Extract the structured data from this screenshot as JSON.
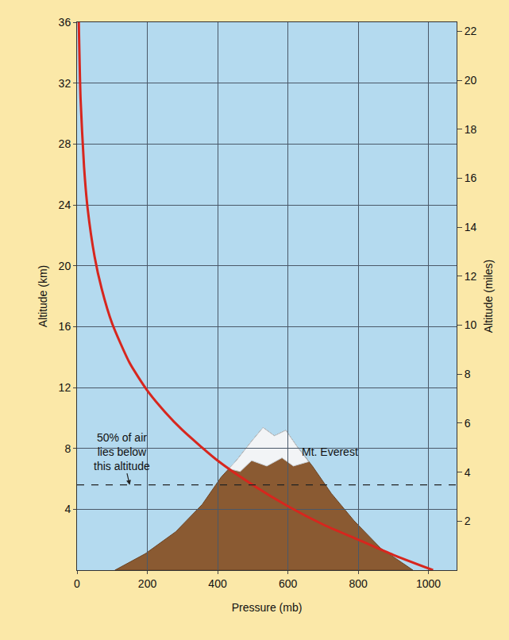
{
  "chart_data": {
    "type": "line",
    "x_label": "Pressure (mb)",
    "y_label": "Altitude (km)",
    "y2_label": "Altitude (miles)",
    "x": [
      1013,
      900,
      800,
      700,
      600,
      500,
      400,
      300,
      250,
      200,
      150,
      100,
      70,
      50,
      30,
      20,
      10,
      5
    ],
    "values": [
      0,
      1,
      2,
      3,
      4.2,
      5.6,
      7.2,
      9.2,
      10.4,
      11.8,
      13.6,
      16.2,
      18.5,
      20.6,
      23.8,
      26.5,
      31,
      36
    ],
    "color": "#d7261e",
    "xlim": [
      0,
      1080
    ],
    "xticks": [
      0,
      200,
      400,
      600,
      800,
      1000
    ],
    "ylim": [
      0,
      36
    ],
    "yticks": [
      4,
      8,
      12,
      16,
      20,
      24,
      28,
      32,
      36
    ],
    "y2lim": [
      0,
      22.37
    ],
    "y2ticks": [
      2,
      4,
      6,
      8,
      10,
      12,
      14,
      16,
      18,
      20,
      22
    ],
    "grid": true,
    "annotations": [
      {
        "text": "50% of air\nlies below\nthis altitude",
        "x": 150,
        "y": 5.6,
        "line_style": "dashed"
      },
      {
        "text": "Mt. Everest",
        "x": 720,
        "y": 7.8
      }
    ]
  }
}
